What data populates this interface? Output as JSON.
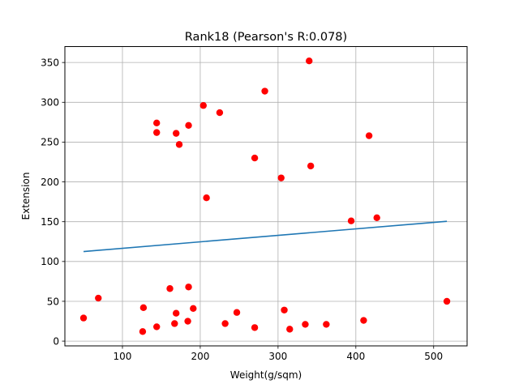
{
  "chart_data": {
    "type": "scatter",
    "title": "Rank18 (Pearson's R:0.078)",
    "xlabel": "Weight(g/sqm)",
    "ylabel": "Extension",
    "xlim": [
      26,
      543
    ],
    "ylim": [
      -6,
      370
    ],
    "xticks": [
      100,
      200,
      300,
      400,
      500
    ],
    "yticks": [
      0,
      50,
      100,
      150,
      200,
      250,
      300,
      350
    ],
    "grid": true,
    "colors": {
      "points": "#ff0000",
      "trend": "#1f77b4",
      "grid": "#b0b0b0"
    },
    "points": [
      {
        "x": 50,
        "y": 29
      },
      {
        "x": 69,
        "y": 54
      },
      {
        "x": 126,
        "y": 12
      },
      {
        "x": 127,
        "y": 42
      },
      {
        "x": 144,
        "y": 18
      },
      {
        "x": 144,
        "y": 262
      },
      {
        "x": 144,
        "y": 274
      },
      {
        "x": 161,
        "y": 66
      },
      {
        "x": 167,
        "y": 22
      },
      {
        "x": 169,
        "y": 35
      },
      {
        "x": 169,
        "y": 261
      },
      {
        "x": 173,
        "y": 247
      },
      {
        "x": 184,
        "y": 25
      },
      {
        "x": 185,
        "y": 68
      },
      {
        "x": 185,
        "y": 271
      },
      {
        "x": 191,
        "y": 41
      },
      {
        "x": 204,
        "y": 296
      },
      {
        "x": 208,
        "y": 180
      },
      {
        "x": 225,
        "y": 287
      },
      {
        "x": 232,
        "y": 22
      },
      {
        "x": 247,
        "y": 36
      },
      {
        "x": 270,
        "y": 17
      },
      {
        "x": 270,
        "y": 230
      },
      {
        "x": 283,
        "y": 314
      },
      {
        "x": 304,
        "y": 205
      },
      {
        "x": 308,
        "y": 39
      },
      {
        "x": 315,
        "y": 15
      },
      {
        "x": 335,
        "y": 21
      },
      {
        "x": 340,
        "y": 352
      },
      {
        "x": 342,
        "y": 220
      },
      {
        "x": 362,
        "y": 21
      },
      {
        "x": 394,
        "y": 151
      },
      {
        "x": 410,
        "y": 26
      },
      {
        "x": 417,
        "y": 258
      },
      {
        "x": 427,
        "y": 155
      },
      {
        "x": 517,
        "y": 50
      }
    ],
    "trendline": {
      "x": [
        50,
        517
      ],
      "y": [
        112.5,
        150.5
      ]
    }
  }
}
